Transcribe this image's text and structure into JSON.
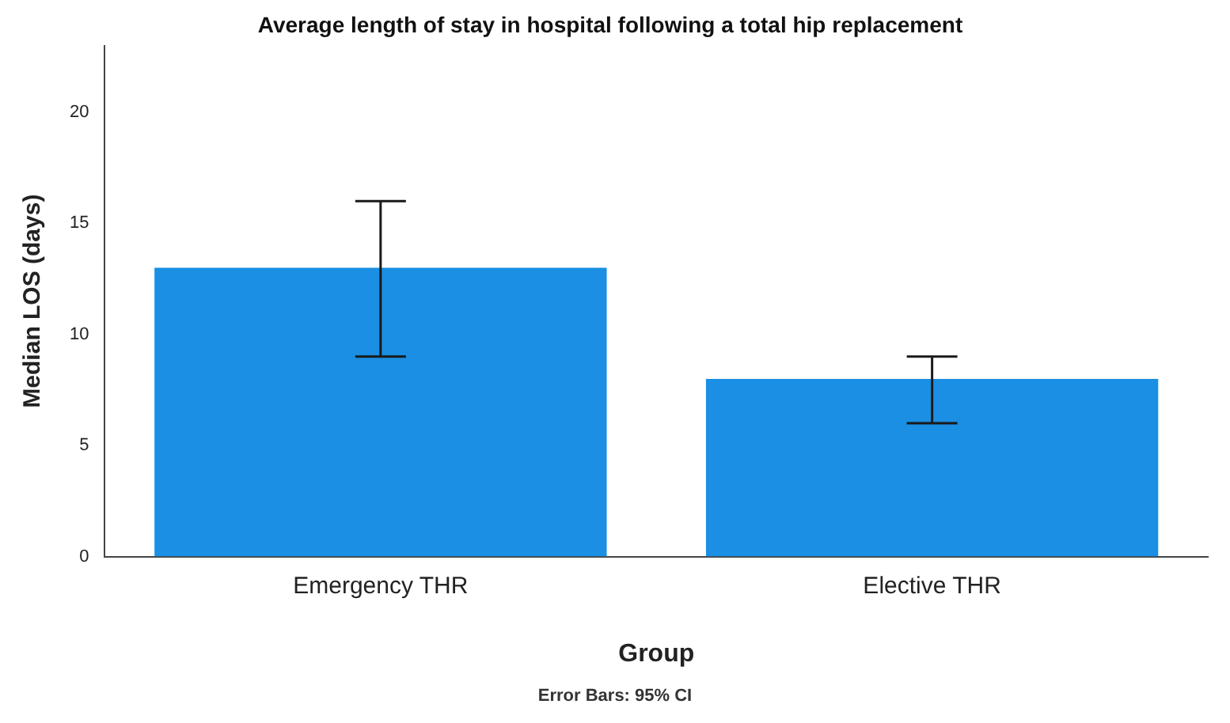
{
  "chart_data": {
    "type": "bar",
    "title": "Average length of stay in hospital following a total hip replacement",
    "xlabel": "Group",
    "ylabel": "Median LOS (days)",
    "categories": [
      "Emergency THR",
      "Elective THR"
    ],
    "values": [
      13,
      8
    ],
    "color": "#1a8fe3",
    "errors": [
      [
        9,
        16
      ],
      [
        6,
        9
      ]
    ],
    "ylim": [
      0,
      23
    ],
    "yticks": [
      0,
      5,
      10,
      15,
      20
    ],
    "grid": false,
    "legend": false,
    "annotations": [
      "Error Bars: 95% CI"
    ]
  }
}
